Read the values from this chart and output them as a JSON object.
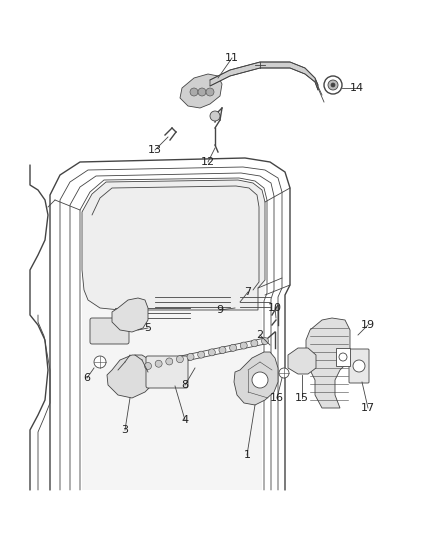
{
  "bg_color": "#ffffff",
  "line_color": "#444444",
  "label_color": "#222222",
  "fig_width": 4.38,
  "fig_height": 5.33,
  "dpi": 100
}
